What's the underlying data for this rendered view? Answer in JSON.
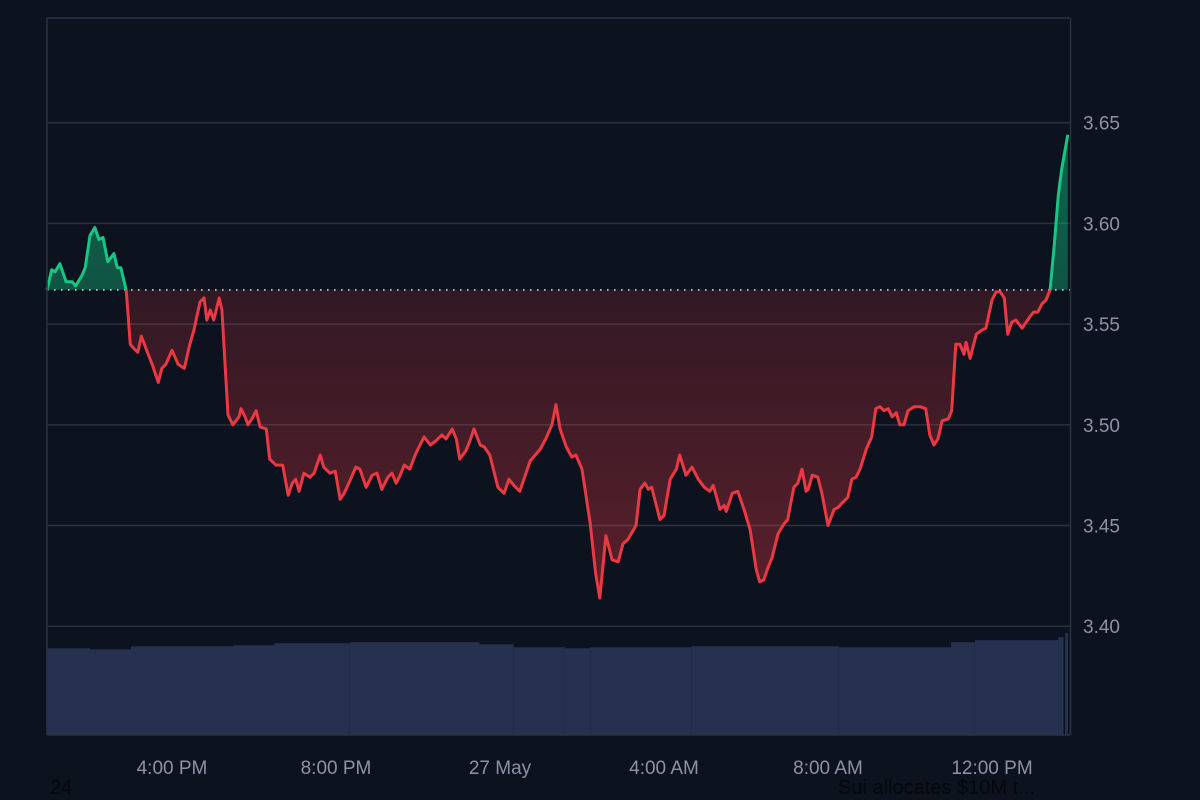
{
  "chart_data": {
    "type": "area",
    "title": "",
    "xlabel": "",
    "ylabel": "",
    "ylim": [
      3.346,
      3.702
    ],
    "grid": true,
    "y_axis_position": "right",
    "y_ticks": [
      "3.40",
      "3.45",
      "3.50",
      "3.55",
      "3.60",
      "3.65"
    ],
    "x_ticks": [
      {
        "label": "4:00 PM",
        "time": "26 May 16:00"
      },
      {
        "label": "8:00 PM",
        "time": "26 May 20:00"
      },
      {
        "label": "27 May",
        "time": "27 May 00:00"
      },
      {
        "label": "4:00 AM",
        "time": "27 May 04:00"
      },
      {
        "label": "8:00 AM",
        "time": "27 May 08:00"
      },
      {
        "label": "12:00 PM",
        "time": "27 May 12:00"
      }
    ],
    "baseline": 3.567,
    "colors": {
      "up": "#16c784",
      "down": "#ea3943",
      "volume": "#26304f",
      "grid": "#2a3141",
      "background": "#0c121e"
    },
    "series": [
      {
        "points": [
          [
            "26 May 12:57",
            3.567
          ],
          [
            "26 May 13:04",
            3.577
          ],
          [
            "26 May 13:09",
            3.576
          ],
          [
            "26 May 13:16",
            3.58
          ],
          [
            "26 May 13:25",
            3.571
          ],
          [
            "26 May 13:34",
            3.571
          ],
          [
            "26 May 13:39",
            3.569
          ],
          [
            "26 May 13:48",
            3.574
          ],
          [
            "26 May 13:53",
            3.578
          ],
          [
            "26 May 14:00",
            3.594
          ],
          [
            "26 May 14:07",
            3.598
          ],
          [
            "26 May 14:13",
            3.592
          ],
          [
            "26 May 14:19",
            3.593
          ],
          [
            "26 May 14:26",
            3.581
          ],
          [
            "26 May 14:35",
            3.585
          ],
          [
            "26 May 14:40",
            3.578
          ],
          [
            "26 May 14:45",
            3.578
          ],
          [
            "26 May 14:53",
            3.567
          ],
          [
            "26 May 14:59",
            3.54
          ],
          [
            "26 May 15:04",
            3.538
          ],
          [
            "26 May 15:10",
            3.536
          ],
          [
            "26 May 15:15",
            3.544
          ],
          [
            "26 May 15:23",
            3.537
          ],
          [
            "26 May 15:31",
            3.53
          ],
          [
            "26 May 15:40",
            3.521
          ],
          [
            "26 May 15:45",
            3.528
          ],
          [
            "26 May 15:51",
            3.53
          ],
          [
            "26 May 16:00",
            3.537
          ],
          [
            "26 May 16:09",
            3.53
          ],
          [
            "26 May 16:18",
            3.528
          ],
          [
            "26 May 16:26",
            3.54
          ],
          [
            "26 May 16:32",
            3.547
          ],
          [
            "26 May 16:41",
            3.561
          ],
          [
            "26 May 16:47",
            3.563
          ],
          [
            "26 May 16:51",
            3.552
          ],
          [
            "26 May 16:56",
            3.557
          ],
          [
            "26 May 17:01",
            3.552
          ],
          [
            "26 May 17:09",
            3.563
          ],
          [
            "26 May 17:13",
            3.557
          ],
          [
            "26 May 17:22",
            3.505
          ],
          [
            "26 May 17:29",
            3.5
          ],
          [
            "26 May 17:38",
            3.504
          ],
          [
            "26 May 17:41",
            3.508
          ],
          [
            "26 May 17:47",
            3.504
          ],
          [
            "26 May 17:51",
            3.5
          ],
          [
            "26 May 17:57",
            3.503
          ],
          [
            "26 May 18:03",
            3.507
          ],
          [
            "26 May 18:09",
            3.499
          ],
          [
            "26 May 18:18",
            3.498
          ],
          [
            "26 May 18:23",
            3.483
          ],
          [
            "26 May 18:32",
            3.48
          ],
          [
            "26 May 18:42",
            3.48
          ],
          [
            "26 May 18:50",
            3.465
          ],
          [
            "26 May 18:56",
            3.471
          ],
          [
            "26 May 19:01",
            3.473
          ],
          [
            "26 May 19:06",
            3.467
          ],
          [
            "26 May 19:13",
            3.476
          ],
          [
            "26 May 19:22",
            3.474
          ],
          [
            "26 May 19:28",
            3.476
          ],
          [
            "26 May 19:37",
            3.485
          ],
          [
            "26 May 19:42",
            3.479
          ],
          [
            "26 May 19:51",
            3.476
          ],
          [
            "26 May 19:59",
            3.477
          ],
          [
            "26 May 20:06",
            3.463
          ],
          [
            "26 May 20:12",
            3.466
          ],
          [
            "26 May 20:20",
            3.472
          ],
          [
            "26 May 20:29",
            3.479
          ],
          [
            "26 May 20:35",
            3.478
          ],
          [
            "26 May 20:44",
            3.469
          ],
          [
            "26 May 20:53",
            3.475
          ],
          [
            "26 May 21:00",
            3.476
          ],
          [
            "26 May 21:07",
            3.468
          ],
          [
            "26 May 21:16",
            3.474
          ],
          [
            "26 May 21:22",
            3.476
          ],
          [
            "26 May 21:28",
            3.471
          ],
          [
            "26 May 21:34",
            3.475
          ],
          [
            "26 May 21:40",
            3.48
          ],
          [
            "26 May 21:48",
            3.478
          ],
          [
            "26 May 21:57",
            3.486
          ],
          [
            "26 May 22:09",
            3.494
          ],
          [
            "26 May 22:18",
            3.49
          ],
          [
            "26 May 22:26",
            3.492
          ],
          [
            "26 May 22:35",
            3.495
          ],
          [
            "26 May 22:41",
            3.493
          ],
          [
            "26 May 22:50",
            3.498
          ],
          [
            "26 May 22:56",
            3.493
          ],
          [
            "26 May 23:01",
            3.483
          ],
          [
            "26 May 23:10",
            3.487
          ],
          [
            "26 May 23:16",
            3.492
          ],
          [
            "26 May 23:22",
            3.498
          ],
          [
            "26 May 23:31",
            3.49
          ],
          [
            "26 May 23:37",
            3.489
          ],
          [
            "26 May 23:45",
            3.485
          ],
          [
            "26 May 23:57",
            3.469
          ],
          [
            "27 May 00:06",
            3.466
          ],
          [
            "27 May 00:13",
            3.473
          ],
          [
            "27 May 00:20",
            3.47
          ],
          [
            "27 May 00:29",
            3.467
          ],
          [
            "27 May 00:44",
            3.482
          ],
          [
            "27 May 00:59",
            3.488
          ],
          [
            "27 May 01:07",
            3.493
          ],
          [
            "27 May 01:16",
            3.5
          ],
          [
            "27 May 01:22",
            3.51
          ],
          [
            "27 May 01:28",
            3.498
          ],
          [
            "27 May 01:37",
            3.489
          ],
          [
            "27 May 01:45",
            3.484
          ],
          [
            "27 May 01:51",
            3.485
          ],
          [
            "27 May 02:00",
            3.478
          ],
          [
            "27 May 02:12",
            3.451
          ],
          [
            "27 May 02:20",
            3.426
          ],
          [
            "27 May 02:26",
            3.414
          ],
          [
            "27 May 02:35",
            3.445
          ],
          [
            "27 May 02:44",
            3.433
          ],
          [
            "27 May 02:53",
            3.432
          ],
          [
            "27 May 03:00",
            3.441
          ],
          [
            "27 May 03:07",
            3.443
          ],
          [
            "27 May 03:19",
            3.45
          ],
          [
            "27 May 03:25",
            3.468
          ],
          [
            "27 May 03:32",
            3.471
          ],
          [
            "27 May 03:37",
            3.468
          ],
          [
            "27 May 03:42",
            3.469
          ],
          [
            "27 May 03:54",
            3.453
          ],
          [
            "27 May 04:00",
            3.455
          ],
          [
            "27 May 04:09",
            3.473
          ],
          [
            "27 May 04:18",
            3.478
          ],
          [
            "27 May 04:23",
            3.485
          ],
          [
            "27 May 04:32",
            3.475
          ],
          [
            "27 May 04:41",
            3.479
          ],
          [
            "27 May 04:50",
            3.473
          ],
          [
            "27 May 04:59",
            3.469
          ],
          [
            "27 May 05:07",
            3.467
          ],
          [
            "27 May 05:12",
            3.47
          ],
          [
            "27 May 05:22",
            3.458
          ],
          [
            "27 May 05:28",
            3.46
          ],
          [
            "27 May 05:31",
            3.457
          ],
          [
            "27 May 05:40",
            3.466
          ],
          [
            "27 May 05:48",
            3.467
          ],
          [
            "27 May 05:57",
            3.458
          ],
          [
            "27 May 06:06",
            3.448
          ],
          [
            "27 May 06:15",
            3.428
          ],
          [
            "27 May 06:20",
            3.422
          ],
          [
            "27 May 06:26",
            3.423
          ],
          [
            "27 May 06:32",
            3.429
          ],
          [
            "27 May 06:38",
            3.434
          ],
          [
            "27 May 06:47",
            3.446
          ],
          [
            "27 May 06:56",
            3.451
          ],
          [
            "27 May 07:01",
            3.453
          ],
          [
            "27 May 07:10",
            3.469
          ],
          [
            "27 May 07:16",
            3.471
          ],
          [
            "27 May 07:22",
            3.478
          ],
          [
            "27 May 07:28",
            3.467
          ],
          [
            "27 May 07:31",
            3.468
          ],
          [
            "27 May 07:37",
            3.475
          ],
          [
            "27 May 07:45",
            3.474
          ],
          [
            "27 May 07:51",
            3.466
          ],
          [
            "27 May 08:00",
            3.45
          ],
          [
            "27 May 08:09",
            3.458
          ],
          [
            "27 May 08:15",
            3.459
          ],
          [
            "27 May 08:20",
            3.461
          ],
          [
            "27 May 08:29",
            3.464
          ],
          [
            "27 May 08:35",
            3.473
          ],
          [
            "27 May 08:41",
            3.474
          ],
          [
            "27 May 08:47",
            3.478
          ],
          [
            "27 May 08:56",
            3.488
          ],
          [
            "27 May 09:04",
            3.494
          ],
          [
            "27 May 09:10",
            3.508
          ],
          [
            "27 May 09:16",
            3.509
          ],
          [
            "27 May 09:22",
            3.507
          ],
          [
            "27 May 09:28",
            3.508
          ],
          [
            "27 May 09:34",
            3.504
          ],
          [
            "27 May 09:40",
            3.506
          ],
          [
            "27 May 09:45",
            3.5
          ],
          [
            "27 May 09:51",
            3.5
          ],
          [
            "27 May 09:57",
            3.507
          ],
          [
            "27 May 10:06",
            3.509
          ],
          [
            "27 May 10:15",
            3.509
          ],
          [
            "27 May 10:23",
            3.508
          ],
          [
            "27 May 10:29",
            3.495
          ],
          [
            "27 May 10:35",
            3.49
          ],
          [
            "27 May 10:41",
            3.493
          ],
          [
            "27 May 10:47",
            3.502
          ],
          [
            "27 May 10:56",
            3.503
          ],
          [
            "27 May 11:01",
            3.507
          ],
          [
            "27 May 11:07",
            3.54
          ],
          [
            "27 May 11:13",
            3.54
          ],
          [
            "27 May 11:19",
            3.535
          ],
          [
            "27 May 11:22",
            3.541
          ],
          [
            "27 May 11:28",
            3.533
          ],
          [
            "27 May 11:37",
            3.545
          ],
          [
            "27 May 11:45",
            3.547
          ],
          [
            "27 May 11:51",
            3.548
          ],
          [
            "27 May 12:00",
            3.562
          ],
          [
            "27 May 12:06",
            3.566
          ],
          [
            "27 May 12:12",
            3.566
          ],
          [
            "27 May 12:18",
            3.563
          ],
          [
            "27 May 12:23",
            3.545
          ],
          [
            "27 May 12:29",
            3.551
          ],
          [
            "27 May 12:35",
            3.552
          ],
          [
            "27 May 12:44",
            3.548
          ],
          [
            "27 May 12:56",
            3.554
          ],
          [
            "27 May 13:01",
            3.556
          ],
          [
            "27 May 13:07",
            3.556
          ],
          [
            "27 May 13:13",
            3.56
          ],
          [
            "27 May 13:19",
            3.562
          ],
          [
            "27 May 13:25",
            3.567
          ],
          [
            "27 May 13:31",
            3.589
          ],
          [
            "27 May 13:37",
            3.614
          ],
          [
            "27 May 13:42",
            3.627
          ],
          [
            "27 May 13:51",
            3.644
          ]
        ]
      }
    ],
    "volume_relative": [
      [
        "26 May 12:57",
        0.85
      ],
      [
        "26 May 14:00",
        0.84
      ],
      [
        "26 May 15:00",
        0.87
      ],
      [
        "26 May 17:30",
        0.88
      ],
      [
        "26 May 18:30",
        0.9
      ],
      [
        "26 May 20:20",
        0.91
      ],
      [
        "26 May 23:30",
        0.89
      ],
      [
        "27 May 00:20",
        0.86
      ],
      [
        "27 May 01:35",
        0.85
      ],
      [
        "27 May 02:12",
        0.86
      ],
      [
        "27 May 04:40",
        0.87
      ],
      [
        "27 May 08:15",
        0.86
      ],
      [
        "27 May 11:00",
        0.91
      ],
      [
        "27 May 11:35",
        0.93
      ],
      [
        "27 May 13:37",
        0.96
      ],
      [
        "27 May 13:47",
        1.0
      ]
    ]
  },
  "footer": {
    "left_text": "24",
    "right_text": "Sui allocates $10M t..."
  }
}
